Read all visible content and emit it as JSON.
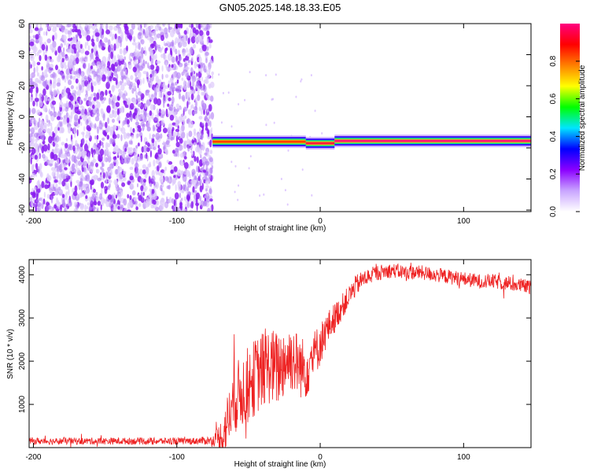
{
  "figure": {
    "title": "GN05.2025.148.18.33.E05"
  },
  "chart_data": [
    {
      "type": "heatmap",
      "xlabel": "Height of straight line (km)",
      "ylabel": "Frequency (Hz)",
      "xlim": [
        -203,
        147
      ],
      "ylim": [
        -61,
        60
      ],
      "x_ticks": [
        -200,
        -100,
        0,
        100
      ],
      "y_ticks": [
        -60,
        -40,
        -20,
        0,
        20,
        40,
        60
      ],
      "noise_region_x": [
        -203,
        -75
      ],
      "signal_line": {
        "x_range": [
          -75,
          147
        ],
        "frequency_Hz": -15,
        "segments": [
          {
            "x": [
              -75,
              -10
            ],
            "frequency_Hz": -16,
            "peak_amplitude": 0.85
          },
          {
            "x": [
              -10,
              10
            ],
            "frequency_Hz": -17,
            "peak_amplitude": 0.95
          },
          {
            "x": [
              10,
              147
            ],
            "frequency_Hz": -15.5,
            "peak_amplitude": 1.0
          }
        ]
      },
      "colorbar": {
        "label": "Normalized spectral amplitude",
        "range": [
          0,
          1
        ],
        "ticks": [
          0.0,
          0.2,
          0.4,
          0.6,
          0.8
        ],
        "colormap": [
          "#ffffff",
          "#c9a5ff",
          "#8b00ff",
          "#0000ff",
          "#00e5ff",
          "#00ff00",
          "#ffff00",
          "#ff8000",
          "#ff0000",
          "#ff0080"
        ]
      }
    },
    {
      "type": "line",
      "xlabel": "Height of straight line (km)",
      "ylabel": "SNR (10 * v/v)",
      "xlim": [
        -203,
        147
      ],
      "ylim": [
        0,
        4350
      ],
      "x_ticks": [
        -200,
        -100,
        0,
        100
      ],
      "y_ticks": [
        1000,
        2000,
        3000,
        4000
      ],
      "color": "#ee2222",
      "series": [
        {
          "x": [
            -203,
            -190,
            -170,
            -150,
            -130,
            -110,
            -90,
            -75,
            -68,
            -63,
            -60,
            -55,
            -50,
            -45,
            -40,
            -35,
            -30,
            -25,
            -20,
            -15,
            -10,
            -5,
            0,
            5,
            10,
            15,
            20,
            25,
            30,
            40,
            50,
            60,
            70,
            80,
            90,
            100,
            110,
            120,
            130,
            140,
            147
          ],
          "values": [
            150,
            150,
            150,
            150,
            150,
            150,
            150,
            170,
            250,
            800,
            1100,
            1300,
            1450,
            1650,
            1800,
            1900,
            1800,
            2000,
            2100,
            1900,
            1800,
            2100,
            2400,
            2750,
            3000,
            3250,
            3500,
            3750,
            3900,
            4050,
            4100,
            4050,
            4050,
            4000,
            3950,
            3900,
            3850,
            3850,
            3800,
            3750,
            3700
          ],
          "noise_amplitude": [
            80,
            80,
            80,
            80,
            80,
            80,
            80,
            100,
            500,
            700,
            800,
            850,
            900,
            900,
            900,
            900,
            900,
            850,
            800,
            750,
            700,
            600,
            500,
            400,
            350,
            300,
            250,
            250,
            200,
            180,
            170,
            170,
            170,
            170,
            170,
            170,
            170,
            170,
            170,
            170,
            170
          ]
        }
      ]
    }
  ]
}
